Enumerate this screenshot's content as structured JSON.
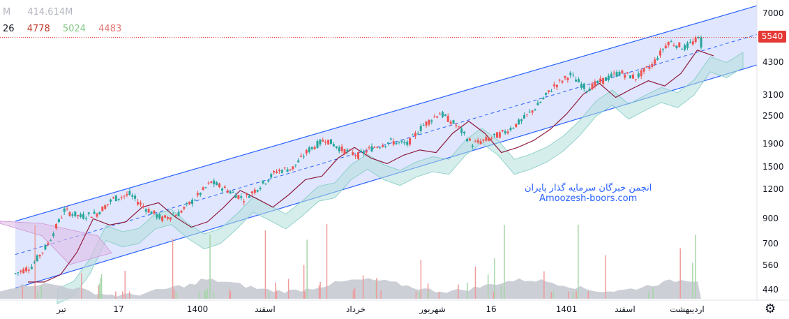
{
  "legend": {
    "volume_prefix": "M",
    "volume_value": "414.614M",
    "ichimoku_period": "26",
    "ichimoku_values": [
      {
        "text": "4778",
        "color": "#c0392b"
      },
      {
        "text": "5024",
        "color": "#81c784"
      },
      {
        "text": "4483",
        "color": "#e57373"
      }
    ]
  },
  "watermark": {
    "line1": "انجمن خبرگان سرمایه گذار پایران",
    "line2": "Amoozesh-boors.com"
  },
  "current_price": "5540",
  "colors": {
    "up": "#26a69a",
    "down": "#ef5350",
    "channel": "#2962ff",
    "channel_fill": "#dbe3fd",
    "base_line": "#8e1b3f",
    "cloud_green": "#b2dfdb",
    "cloud_red": "#e1bee7",
    "volume": "#c4c7d0"
  },
  "chart_data": {
    "type": "candlestick",
    "y_axis": {
      "scale": "log",
      "ticks": [
        440,
        560,
        700,
        900,
        1200,
        1500,
        1900,
        2500,
        3100,
        4300,
        5540,
        7000
      ]
    },
    "x_axis": {
      "ticks": [
        "تیر",
        "17",
        "1400",
        "اسفند",
        "خرداد",
        "شهریور",
        "16",
        "1401",
        "اسفند",
        "اردیبهشت"
      ]
    },
    "channel": {
      "upper": [
        {
          "x": "start",
          "y": 880
        },
        {
          "x": "end",
          "y": 7600
        }
      ],
      "lower": [
        {
          "x": "start",
          "y": 450
        },
        {
          "x": "end",
          "y": 4200
        }
      ],
      "middle": [
        {
          "x": "start",
          "y": 630
        },
        {
          "x": "end",
          "y": 5700
        }
      ]
    },
    "close_series": [
      520,
      560,
      700,
      980,
      920,
      950,
      1100,
      1150,
      1000,
      900,
      950,
      1100,
      1300,
      1200,
      1100,
      1250,
      1450,
      1500,
      1800,
      2000,
      1800,
      1700,
      1850,
      1950,
      1900,
      2300,
      2600,
      2300,
      1900,
      2000,
      2150,
      2400,
      2800,
      3400,
      3800,
      3300,
      3600,
      3900,
      3700,
      4200,
      5300,
      5000,
      5540
    ],
    "last_close": 5540,
    "last_volume": "414.614M",
    "ichimoku": {
      "period": 26,
      "base": 4778,
      "span_a": 5024,
      "span_b": 4483
    }
  }
}
